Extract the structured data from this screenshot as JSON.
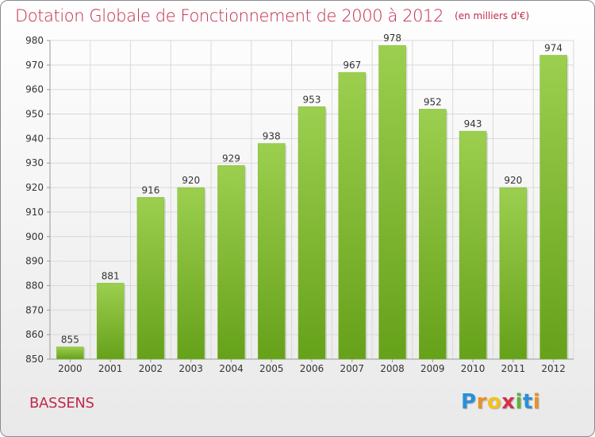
{
  "title": "Dotation Globale de Fonctionnement de 2000 à 2012",
  "unit": "(en milliers d'€)",
  "commune": "BASSENS",
  "logo": {
    "letters": [
      "P",
      "r",
      "o",
      "x",
      "i",
      "t",
      "i"
    ]
  },
  "colors": {
    "title": "#c1294b",
    "bar_light": "#9ccf4f",
    "bar_dark": "#66a11a",
    "grid": "#d9d9d9"
  },
  "chart_data": {
    "type": "bar",
    "title": "Dotation Globale de Fonctionnement de 2000 à 2012",
    "xlabel": "",
    "ylabel": "",
    "categories": [
      "2000",
      "2001",
      "2002",
      "2003",
      "2004",
      "2005",
      "2006",
      "2007",
      "2008",
      "2009",
      "2010",
      "2011",
      "2012"
    ],
    "values": [
      855,
      881,
      916,
      920,
      929,
      938,
      953,
      967,
      978,
      952,
      943,
      920,
      974
    ],
    "data_labels": [
      "855",
      "881",
      "916",
      "920",
      "929",
      "938",
      "953",
      "967",
      "978",
      "952",
      "943",
      "920",
      "974"
    ],
    "ylim": [
      850,
      980
    ],
    "yticks": [
      850,
      860,
      870,
      880,
      890,
      900,
      910,
      920,
      930,
      940,
      950,
      960,
      970,
      980
    ],
    "grid": true,
    "legend": "none"
  }
}
